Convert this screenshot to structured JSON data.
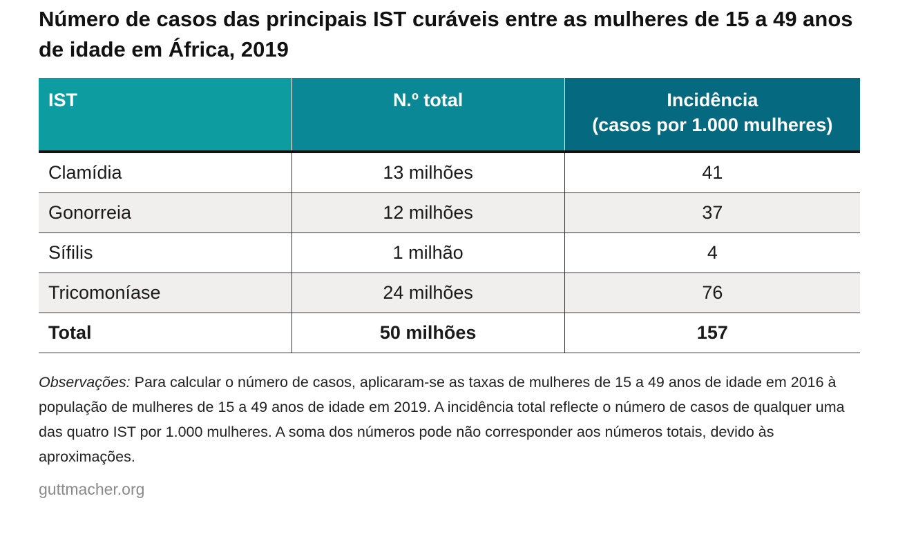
{
  "title": "Número de casos das principais IST curáveis entre as mulheres de 15 a 49 anos de idade em África, 2019",
  "table": {
    "headers": {
      "ist": "IST",
      "total": "N.º total",
      "incidence_line1": "Incidência",
      "incidence_line2": "(casos por 1.000 mulheres)"
    },
    "rows": [
      {
        "ist": "Clamídia",
        "total": "13 milhões",
        "incidence": "41"
      },
      {
        "ist": "Gonorreia",
        "total": "12 milhões",
        "incidence": "37"
      },
      {
        "ist": "Sífilis",
        "total": "1 milhão",
        "incidence": "4"
      },
      {
        "ist": "Tricomoníase",
        "total": "24 milhões",
        "incidence": "76"
      }
    ],
    "total_row": {
      "ist": "Total",
      "total": "50 milhões",
      "incidence": "157"
    }
  },
  "notes": {
    "label": "Observações:",
    "text": " Para calcular o número de casos, aplicaram-se as taxas de mulheres de 15 a 49 anos de idade em 2016 à população de mulheres de 15 a 49 anos de idade em 2019. A incidência total reflecte o número de casos de qualquer uma das quatro IST por 1.000 mulheres. A soma dos números pode não corresponder aos números totais, devido às aproximações."
  },
  "source": "guttmacher.org",
  "colors": {
    "header_col1": "#0d9ca0",
    "header_col2": "#0a8895",
    "header_col3": "#056a80",
    "row_shade": "#f0efed",
    "source_text": "#8a8a8a"
  }
}
